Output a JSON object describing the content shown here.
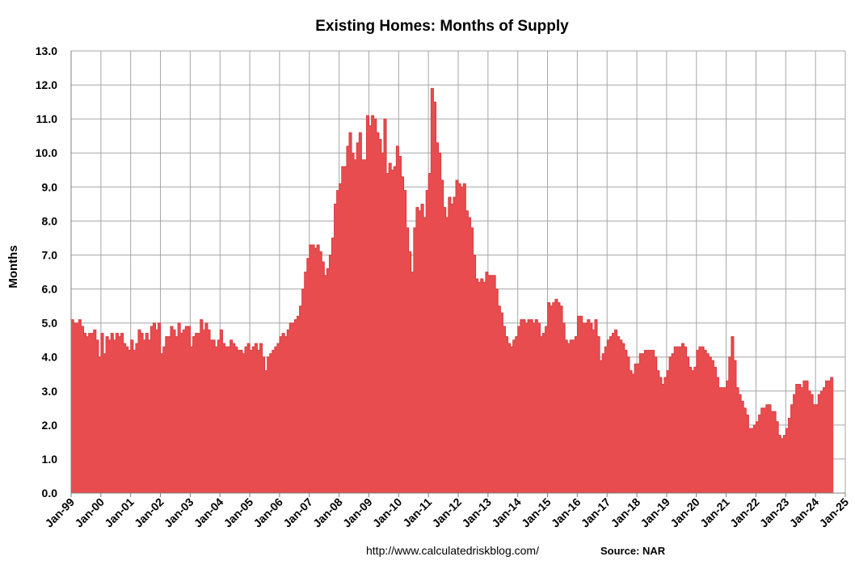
{
  "chart_data": {
    "type": "area",
    "title": "Existing Homes: Months of Supply",
    "ylabel": "Months",
    "xlabel": "",
    "ylim": [
      0,
      13
    ],
    "yticks": [
      "0.0",
      "1.0",
      "2.0",
      "3.0",
      "4.0",
      "5.0",
      "6.0",
      "7.0",
      "8.0",
      "9.0",
      "10.0",
      "11.0",
      "12.0",
      "13.0"
    ],
    "xticks": [
      "Jan-99",
      "Jan-00",
      "Jan-01",
      "Jan-02",
      "Jan-03",
      "Jan-04",
      "Jan-05",
      "Jan-06",
      "Jan-07",
      "Jan-08",
      "Jan-09",
      "Jan-10",
      "Jan-11",
      "Jan-12",
      "Jan-13",
      "Jan-14",
      "Jan-15",
      "Jan-16",
      "Jan-17",
      "Jan-18",
      "Jan-19",
      "Jan-20",
      "Jan-21",
      "Jan-22",
      "Jan-23",
      "Jan-24",
      "Jan-25"
    ],
    "x_start": "Jan-99",
    "x_end": "Jan-25",
    "x_frequency": "monthly",
    "grid": true,
    "color": "#e84c4f",
    "series": [
      {
        "name": "",
        "start": "Jan-99",
        "values": [
          5.1,
          5.0,
          5.0,
          5.1,
          4.9,
          4.7,
          4.6,
          4.7,
          4.7,
          4.8,
          4.5,
          4.0,
          4.7,
          4.1,
          4.6,
          4.5,
          4.7,
          4.5,
          4.7,
          4.6,
          4.7,
          4.4,
          4.3,
          4.2,
          4.5,
          4.2,
          4.4,
          4.8,
          4.7,
          4.5,
          4.7,
          4.5,
          4.9,
          5.0,
          4.8,
          5.0,
          4.1,
          4.3,
          4.6,
          4.6,
          4.9,
          4.8,
          4.6,
          5.0,
          4.7,
          4.8,
          4.9,
          4.9,
          4.3,
          4.6,
          4.7,
          4.7,
          5.1,
          4.8,
          5.0,
          4.8,
          4.5,
          4.5,
          4.3,
          4.5,
          4.8,
          4.4,
          4.3,
          4.3,
          4.5,
          4.4,
          4.3,
          4.2,
          4.2,
          4.1,
          4.3,
          4.4,
          4.2,
          4.3,
          4.4,
          4.2,
          4.4,
          4.0,
          3.6,
          4.0,
          4.1,
          4.2,
          4.3,
          4.4,
          4.6,
          4.7,
          4.6,
          4.8,
          5.0,
          5.0,
          5.1,
          5.2,
          5.5,
          6.0,
          6.5,
          6.9,
          7.3,
          7.3,
          7.2,
          7.3,
          7.1,
          6.8,
          6.4,
          6.6,
          7.0,
          7.5,
          8.5,
          8.9,
          9.1,
          9.6,
          9.6,
          10.2,
          10.6,
          10.0,
          9.8,
          10.3,
          10.6,
          9.8,
          9.8,
          11.1,
          10.8,
          11.1,
          11.0,
          10.6,
          10.4,
          10.0,
          11.0,
          9.4,
          9.7,
          9.5,
          9.6,
          10.2,
          9.9,
          9.3,
          8.9,
          7.8,
          7.1,
          6.5,
          7.8,
          8.4,
          8.3,
          8.5,
          8.1,
          8.9,
          9.4,
          11.9,
          11.5,
          10.3,
          10.0,
          9.2,
          8.4,
          8.1,
          8.7,
          8.5,
          8.7,
          9.2,
          9.1,
          9.0,
          9.1,
          8.3,
          8.1,
          7.8,
          7.0,
          6.3,
          6.2,
          6.3,
          6.2,
          6.5,
          6.4,
          6.4,
          6.4,
          6.0,
          5.5,
          5.3,
          4.9,
          4.6,
          4.4,
          4.3,
          4.5,
          4.6,
          4.9,
          5.1,
          5.1,
          5.0,
          5.1,
          5.1,
          5.0,
          5.1,
          5.0,
          4.6,
          4.7,
          4.9,
          5.6,
          5.5,
          5.6,
          5.7,
          5.6,
          5.5,
          5.0,
          4.5,
          4.4,
          4.5,
          4.5,
          4.6,
          5.2,
          5.2,
          5.0,
          5.0,
          5.1,
          5.0,
          4.8,
          5.1,
          4.6,
          3.9,
          4.1,
          4.3,
          4.5,
          4.6,
          4.7,
          4.8,
          4.6,
          4.5,
          4.4,
          4.2,
          4.0,
          3.6,
          3.5,
          3.8,
          3.8,
          4.1,
          4.1,
          4.2,
          4.2,
          4.2,
          4.2,
          4.0,
          3.6,
          3.4,
          3.2,
          3.4,
          3.6,
          4.0,
          4.1,
          4.3,
          4.3,
          4.3,
          4.4,
          4.3,
          4.0,
          3.7,
          3.6,
          3.7,
          4.2,
          4.3,
          4.3,
          4.2,
          4.1,
          4.0,
          3.9,
          3.7,
          3.4,
          3.1,
          3.1,
          3.1,
          3.3,
          4.0,
          4.6,
          3.9,
          3.1,
          2.9,
          2.7,
          2.5,
          2.3,
          1.9,
          1.9,
          2.0,
          2.1,
          2.3,
          2.5,
          2.5,
          2.6,
          2.6,
          2.4,
          2.4,
          2.1,
          1.7,
          1.6,
          1.7,
          1.9,
          2.2,
          2.6,
          2.9,
          3.2,
          3.2,
          3.1,
          3.3,
          3.3,
          3.0,
          2.9,
          2.6,
          2.6,
          2.9,
          3.0,
          3.1,
          3.3,
          3.3,
          3.4
        ]
      }
    ]
  },
  "footer": {
    "url": "http://www.calculatedriskblog.com/",
    "source": "Source: NAR"
  }
}
